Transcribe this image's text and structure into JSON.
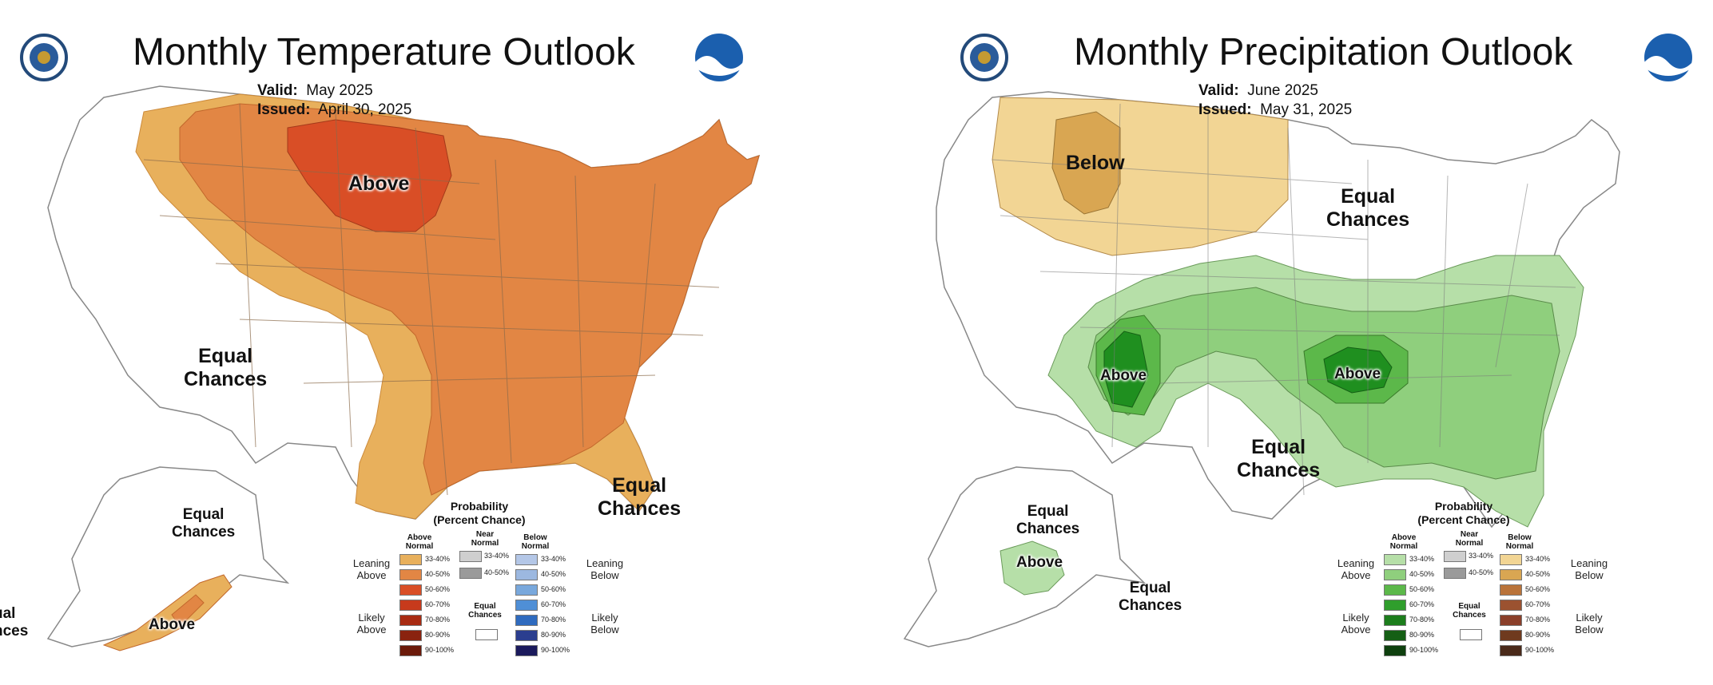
{
  "temperature": {
    "title": "Monthly Temperature Outlook",
    "valid_label": "Valid:",
    "valid_value": "May 2025",
    "issued_label": "Issued:",
    "issued_value": "April 30, 2025",
    "labels": {
      "above_main": "Above",
      "equal_west_1": "Equal",
      "equal_west_2": "Chances",
      "equal_se_1": "Equal",
      "equal_se_2": "Chances",
      "equal_ak_1": "Equal",
      "equal_ak_2": "Chances",
      "above_ak": "Above",
      "cut_1": "ual",
      "cut_2": "nces"
    },
    "legend": {
      "title_1": "Probability",
      "title_2": "(Percent Chance)",
      "col_above_1": "Above",
      "col_above_2": "Normal",
      "col_near_1": "Near",
      "col_near_2": "Normal",
      "col_below_1": "Below",
      "col_below_2": "Normal",
      "leaning_left_1": "Leaning",
      "leaning_left_2": "Above",
      "likely_left_1": "Likely",
      "likely_left_2": "Above",
      "leaning_right_1": "Leaning",
      "leaning_right_2": "Below",
      "likely_right_1": "Likely",
      "likely_right_2": "Below",
      "ec_1": "Equal",
      "ec_2": "Chances",
      "bins": [
        "33-40%",
        "40-50%",
        "50-60%",
        "60-70%",
        "70-80%",
        "80-90%",
        "90-100%"
      ],
      "near_bins": [
        "33-40%",
        "40-50%"
      ],
      "above_colors": [
        "#e8b05c",
        "#e28644",
        "#d94e26",
        "#c73a1c",
        "#a82b12",
        "#8a230f",
        "#6b1a0a"
      ],
      "below_colors": [
        "#b4c7e7",
        "#9cb8e0",
        "#79a8dc",
        "#4f8fd6",
        "#2f6bbf",
        "#2b3e8f",
        "#1b1a5c"
      ],
      "near_colors": [
        "#cfcfcf",
        "#9a9a9a"
      ]
    }
  },
  "precipitation": {
    "title": "Monthly Precipitation Outlook",
    "valid_label": "Valid:",
    "valid_value": "June 2025",
    "issued_label": "Issued:",
    "issued_value": "May 31, 2025",
    "labels": {
      "below_nw": "Below",
      "equal_ne_1": "Equal",
      "equal_ne_2": "Chances",
      "above_sw": "Above",
      "above_ok": "Above",
      "equal_tx_1": "Equal",
      "equal_tx_2": "Chances",
      "equal_ak_1": "Equal",
      "equal_ak_2": "Chances",
      "above_ak": "Above",
      "equal_aks_1": "Equal",
      "equal_aks_2": "Chances"
    },
    "legend": {
      "title_1": "Probability",
      "title_2": "(Percent Chance)",
      "col_above_1": "Above",
      "col_above_2": "Normal",
      "col_near_1": "Near",
      "col_near_2": "Normal",
      "col_below_1": "Below",
      "col_below_2": "Normal",
      "leaning_left_1": "Leaning",
      "leaning_left_2": "Above",
      "likely_left_1": "Likely",
      "likely_left_2": "Above",
      "leaning_right_1": "Leaning",
      "leaning_right_2": "Below",
      "likely_right_1": "Likely",
      "likely_right_2": "Below",
      "ec_1": "Equal",
      "ec_2": "Chances",
      "bins": [
        "33-40%",
        "40-50%",
        "50-60%",
        "60-70%",
        "70-80%",
        "80-90%",
        "90-100%"
      ],
      "near_bins": [
        "33-40%",
        "40-50%"
      ],
      "above_colors": [
        "#b6dfa8",
        "#8fcf7d",
        "#5cb84a",
        "#2f9e2c",
        "#1c7d1c",
        "#155f15",
        "#0e400e"
      ],
      "below_colors": [
        "#f2d594",
        "#d9a652",
        "#b9733a",
        "#9b5230",
        "#8a3f2a",
        "#6f3a1e",
        "#4a2a1a"
      ],
      "near_colors": [
        "#cfcfcf",
        "#9a9a9a"
      ]
    }
  }
}
